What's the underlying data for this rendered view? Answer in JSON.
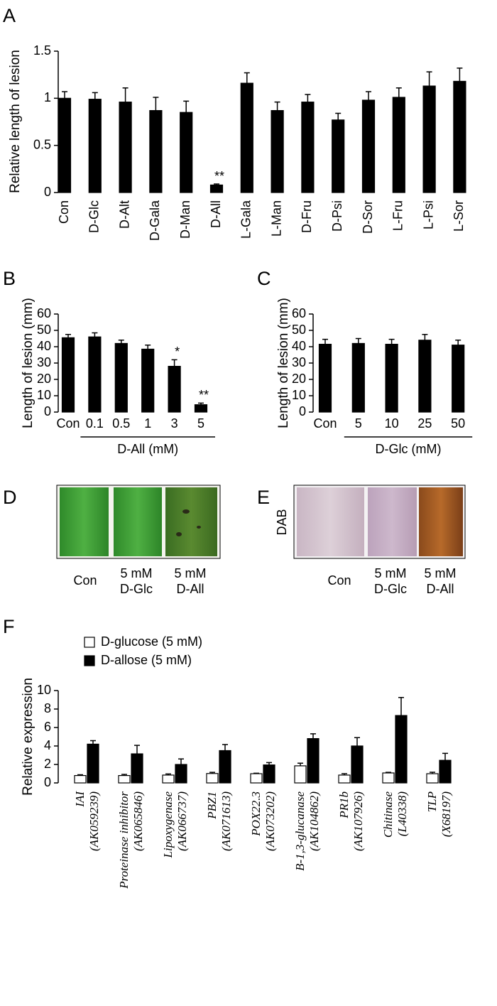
{
  "chart_data": [
    {
      "type": "bar",
      "panel": "A",
      "y_label": "Relative length of lesion",
      "categories": [
        "Con",
        "D-Glc",
        "D-Alt",
        "D-Gala",
        "D-Man",
        "D-All",
        "L-Gala",
        "L-Man",
        "D-Fru",
        "D-Psi",
        "D-Sor",
        "L-Fru",
        "L-Psi",
        "L-Sor"
      ],
      "values": [
        1.0,
        0.99,
        0.96,
        0.87,
        0.85,
        0.08,
        1.16,
        0.87,
        0.96,
        0.77,
        0.98,
        1.01,
        1.13,
        1.18
      ],
      "errors": [
        0.07,
        0.07,
        0.15,
        0.14,
        0.12,
        0.01,
        0.11,
        0.09,
        0.08,
        0.07,
        0.09,
        0.1,
        0.15,
        0.14
      ],
      "color": "#000000",
      "ylim": [
        0,
        1.5
      ],
      "yticks": [
        0,
        0.5,
        1,
        1.5
      ],
      "annotations": [
        {
          "text": "**",
          "category": "D-All"
        }
      ]
    },
    {
      "type": "bar",
      "panel": "B",
      "y_label": "Length of lesion (mm)",
      "categories": [
        "Con",
        "0.1",
        "0.5",
        "1",
        "3",
        "5"
      ],
      "group_label": "D-All (mM)",
      "values": [
        45.5,
        46,
        42,
        38.5,
        28,
        4.5
      ],
      "errors": [
        2,
        2.5,
        2,
        2.5,
        4,
        1
      ],
      "color": "#000000",
      "ylim": [
        0,
        60
      ],
      "yticks": [
        0,
        10,
        20,
        30,
        40,
        50,
        60
      ],
      "annotations": [
        {
          "text": "*",
          "category": "3"
        },
        {
          "text": "**",
          "category": "5"
        }
      ]
    },
    {
      "type": "bar",
      "panel": "C",
      "y_label": "Length of lesion (mm)",
      "categories": [
        "Con",
        "5",
        "10",
        "25",
        "50"
      ],
      "group_label": "D-Glc (mM)",
      "values": [
        41.5,
        42,
        41.5,
        44,
        41
      ],
      "errors": [
        3,
        3,
        3,
        3.5,
        3
      ],
      "color": "#000000",
      "ylim": [
        0,
        60
      ],
      "yticks": [
        0,
        10,
        20,
        30,
        40,
        50,
        60
      ],
      "annotations": []
    },
    {
      "type": "grouped_bar",
      "panel": "F",
      "y_label": "Relative expression",
      "categories": [
        "IAI",
        "Proteinase inhibitor",
        "Lipoxygenase",
        "PBZ1",
        "POX22.3",
        "B-1,3-glucanase",
        "PR1b",
        "Chitinase",
        "TLP"
      ],
      "category_codes": [
        "(AK059239)",
        "(AK065846)",
        "(AK066737)",
        "(AK071613)",
        "(AK073202)",
        "(AK104862)",
        "(AK107926)",
        "(L40338)",
        "(X68197)"
      ],
      "series": [
        {
          "name": "D-glucose (5 mM)",
          "color": "#ffffff",
          "values": [
            0.8,
            0.8,
            0.85,
            1.02,
            1.0,
            1.85,
            0.85,
            1.08,
            1.0
          ],
          "errors": [
            0.08,
            0.12,
            0.12,
            0.12,
            0.05,
            0.28,
            0.15,
            0.06,
            0.15
          ]
        },
        {
          "name": "D-allose (5 mM)",
          "color": "#000000",
          "values": [
            4.2,
            3.15,
            2.0,
            3.5,
            1.95,
            4.8,
            4.0,
            7.3,
            2.45
          ],
          "errors": [
            0.38,
            0.92,
            0.6,
            0.65,
            0.25,
            0.52,
            0.9,
            1.95,
            0.75
          ]
        }
      ],
      "ylim": [
        0,
        10
      ],
      "yticks": [
        0,
        2,
        4,
        6,
        8,
        10
      ],
      "legend": "upper left"
    }
  ],
  "image_panels": [
    {
      "panel": "D",
      "labels": [
        [
          "Con"
        ],
        [
          "5 mM",
          "D-Glc"
        ],
        [
          "5 mM",
          "D-All"
        ]
      ]
    },
    {
      "panel": "E",
      "side_label": "DAB",
      "labels": [
        [
          "Con"
        ],
        [
          "5 mM",
          "D-Glc"
        ],
        [
          "5 mM",
          "D-All"
        ]
      ]
    }
  ]
}
